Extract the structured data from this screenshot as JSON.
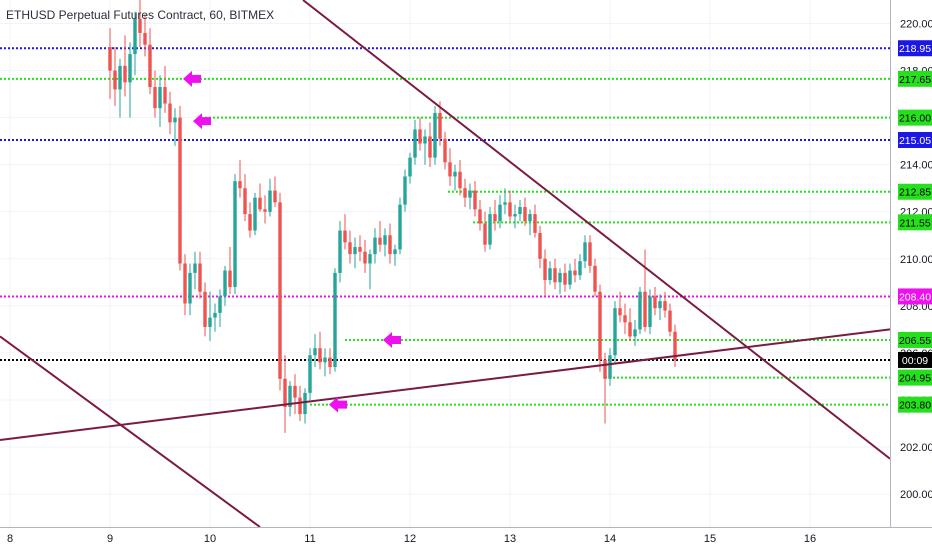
{
  "chart_data": {
    "type": "candlestick",
    "title": "ETHUSD Perpetual Futures Contract, 60, BITMEX",
    "ylim": [
      198.6,
      221.0
    ],
    "y_ticks": [
      "200.00",
      "202.00",
      "204.00",
      "206.00",
      "208.00",
      "210.00",
      "212.00",
      "214.00",
      "216.00",
      "218.00",
      "220.00"
    ],
    "x_ticks": [
      {
        "label": "8",
        "day": 8
      },
      {
        "label": "9",
        "day": 9
      },
      {
        "label": "10",
        "day": 10
      },
      {
        "label": "11",
        "day": 11
      },
      {
        "label": "12",
        "day": 12
      },
      {
        "label": "13",
        "day": 13
      },
      {
        "label": "14",
        "day": 14
      },
      {
        "label": "15",
        "day": 15
      },
      {
        "label": "16",
        "day": 16
      }
    ],
    "xlim_days": [
      7.9,
      16.8
    ],
    "colors": {
      "up": "#26a69a",
      "down": "#ef5350",
      "trend": "#7b1a42",
      "blue": "#1d17e6",
      "green": "#26e01e",
      "magenta": "#ee10ee",
      "arrow": "#ee10ee",
      "price": "#000000"
    },
    "horizontal_levels": [
      {
        "price": 218.95,
        "label": "218.95",
        "color": "blue",
        "start_day": 7.9
      },
      {
        "price": 217.65,
        "label": "217.65",
        "color": "green",
        "start_day": 7.9
      },
      {
        "price": 216.0,
        "label": "216.00",
        "color": "green",
        "start_day": 9.95
      },
      {
        "price": 215.05,
        "label": "215.05",
        "color": "blue",
        "start_day": 7.9
      },
      {
        "price": 212.85,
        "label": "212.85",
        "color": "green",
        "start_day": 12.38
      },
      {
        "price": 211.55,
        "label": "211.55",
        "color": "green",
        "start_day": 12.63
      },
      {
        "price": 208.4,
        "label": "208.40",
        "color": "magenta",
        "start_day": 7.9
      },
      {
        "price": 206.55,
        "label": "206.55",
        "color": "green",
        "start_day": 11.35
      },
      {
        "price": 204.95,
        "label": "204.95",
        "color": "green",
        "start_day": 13.95
      },
      {
        "price": 203.8,
        "label": "203.80",
        "color": "green",
        "start_day": 11.0
      }
    ],
    "current_price": {
      "price": 205.7,
      "label": "00:09",
      "color": "price"
    },
    "trendlines": [
      {
        "p1": [
          7.9,
          202.3
        ],
        "p2": [
          16.8,
          207.0
        ]
      },
      {
        "p1": [
          10.93,
          221.0
        ],
        "p2": [
          16.8,
          201.5
        ]
      },
      {
        "p1": [
          7.9,
          206.7
        ],
        "p2": [
          10.5,
          198.6
        ]
      }
    ],
    "arrows": [
      {
        "day": 9.82,
        "price": 217.65,
        "glyph": "🡸"
      },
      {
        "day": 9.92,
        "price": 215.85,
        "glyph": "🡸"
      },
      {
        "day": 11.82,
        "price": 206.55,
        "glyph": "🡸"
      },
      {
        "day": 11.28,
        "price": 203.8,
        "glyph": "🡸"
      }
    ],
    "candles": [
      [
        9.0,
        219.0,
        219.8,
        216.8,
        218.0
      ],
      [
        9.05,
        218.0,
        219.0,
        216.5,
        217.2
      ],
      [
        9.1,
        217.2,
        218.5,
        216.0,
        218.2
      ],
      [
        9.15,
        218.2,
        219.5,
        216.9,
        217.5
      ],
      [
        9.2,
        217.5,
        219.2,
        216.0,
        218.7
      ],
      [
        9.25,
        218.7,
        220.5,
        217.8,
        220.2
      ],
      [
        9.3,
        220.2,
        221.0,
        219.0,
        219.6
      ],
      [
        9.35,
        219.6,
        220.4,
        218.6,
        219.1
      ],
      [
        9.4,
        219.1,
        219.8,
        217.0,
        217.3
      ],
      [
        9.45,
        217.3,
        218.0,
        216.0,
        216.4
      ],
      [
        9.5,
        216.4,
        217.8,
        215.6,
        217.3
      ],
      [
        9.55,
        217.3,
        218.2,
        216.2,
        216.6
      ],
      [
        9.6,
        216.6,
        217.1,
        215.3,
        215.8
      ],
      [
        9.65,
        215.8,
        216.4,
        214.8,
        216.0
      ],
      [
        9.7,
        216.0,
        216.5,
        209.5,
        209.8
      ],
      [
        9.75,
        209.8,
        210.2,
        207.6,
        208.1
      ],
      [
        9.8,
        208.1,
        209.8,
        207.6,
        209.4
      ],
      [
        9.85,
        209.4,
        210.3,
        208.7,
        209.8
      ],
      [
        9.9,
        209.8,
        210.3,
        208.3,
        208.6
      ],
      [
        9.95,
        208.6,
        209.0,
        206.7,
        207.1
      ],
      [
        10.0,
        207.1,
        208.6,
        206.5,
        207.5
      ],
      [
        10.05,
        207.5,
        208.1,
        206.9,
        207.7
      ],
      [
        10.1,
        207.7,
        208.7,
        207.1,
        208.4
      ],
      [
        10.15,
        208.4,
        209.7,
        208.0,
        209.5
      ],
      [
        10.2,
        209.5,
        210.5,
        208.5,
        208.8
      ],
      [
        10.25,
        208.8,
        213.6,
        208.5,
        213.3
      ],
      [
        10.3,
        213.3,
        214.2,
        212.6,
        213.0
      ],
      [
        10.35,
        213.0,
        213.6,
        211.6,
        211.9
      ],
      [
        10.4,
        211.9,
        212.4,
        210.9,
        211.2
      ],
      [
        10.45,
        211.2,
        212.8,
        211.0,
        212.6
      ],
      [
        10.5,
        212.6,
        213.2,
        212.0,
        212.1
      ],
      [
        10.55,
        212.1,
        212.7,
        211.5,
        212.0
      ],
      [
        10.6,
        212.0,
        213.4,
        211.8,
        212.9
      ],
      [
        10.65,
        212.9,
        213.5,
        212.2,
        212.4
      ],
      [
        10.7,
        212.4,
        212.8,
        204.4,
        204.9
      ],
      [
        10.75,
        204.9,
        205.9,
        202.6,
        203.7
      ],
      [
        10.8,
        203.7,
        204.8,
        203.3,
        204.6
      ],
      [
        10.85,
        204.6,
        205.1,
        203.4,
        204.1
      ],
      [
        10.9,
        204.1,
        204.6,
        203.1,
        203.4
      ],
      [
        10.95,
        203.4,
        204.5,
        203.0,
        204.3
      ],
      [
        11.0,
        204.3,
        206.2,
        204.0,
        205.9
      ],
      [
        11.05,
        205.9,
        206.8,
        205.4,
        206.2
      ],
      [
        11.1,
        206.2,
        206.9,
        205.3,
        205.6
      ],
      [
        11.15,
        205.6,
        206.2,
        205.0,
        205.8
      ],
      [
        11.2,
        205.8,
        206.2,
        205.1,
        205.4
      ],
      [
        11.25,
        205.4,
        209.6,
        205.2,
        209.4
      ],
      [
        11.3,
        209.4,
        211.6,
        209.0,
        211.2
      ],
      [
        11.35,
        211.2,
        211.9,
        210.4,
        210.7
      ],
      [
        11.4,
        210.7,
        211.2,
        209.8,
        210.2
      ],
      [
        11.45,
        210.2,
        210.9,
        209.6,
        210.5
      ],
      [
        11.5,
        210.5,
        211.0,
        209.9,
        210.3
      ],
      [
        11.55,
        210.3,
        210.8,
        209.4,
        209.8
      ],
      [
        11.6,
        209.8,
        210.4,
        208.7,
        210.2
      ],
      [
        11.65,
        210.2,
        211.3,
        209.8,
        210.9
      ],
      [
        11.7,
        210.9,
        211.6,
        210.3,
        210.6
      ],
      [
        11.75,
        210.6,
        211.3,
        210.1,
        211.0
      ],
      [
        11.8,
        211.0,
        211.5,
        209.8,
        210.2
      ],
      [
        11.85,
        210.2,
        210.6,
        209.7,
        210.4
      ],
      [
        11.9,
        210.4,
        212.6,
        210.2,
        212.3
      ],
      [
        11.95,
        212.3,
        213.8,
        212.0,
        213.5
      ],
      [
        12.0,
        213.5,
        214.5,
        213.2,
        214.3
      ],
      [
        12.05,
        214.3,
        215.9,
        214.0,
        215.5
      ],
      [
        12.1,
        215.5,
        216.0,
        214.6,
        214.9
      ],
      [
        12.15,
        214.9,
        215.5,
        214.0,
        215.2
      ],
      [
        12.2,
        215.2,
        215.8,
        213.9,
        214.3
      ],
      [
        12.25,
        214.3,
        216.5,
        214.0,
        216.2
      ],
      [
        12.3,
        216.2,
        216.7,
        214.8,
        215.1
      ],
      [
        12.35,
        215.1,
        215.4,
        213.8,
        214.1
      ],
      [
        12.4,
        214.1,
        214.7,
        213.1,
        213.5
      ],
      [
        12.45,
        213.5,
        214.0,
        212.9,
        213.7
      ],
      [
        12.5,
        213.7,
        214.2,
        212.7,
        213.0
      ],
      [
        12.55,
        213.0,
        213.4,
        212.2,
        212.6
      ],
      [
        12.6,
        212.6,
        213.2,
        212.1,
        212.9
      ],
      [
        12.65,
        212.9,
        213.3,
        211.8,
        212.1
      ],
      [
        12.7,
        212.1,
        212.5,
        211.2,
        211.5
      ],
      [
        12.75,
        211.5,
        212.0,
        210.3,
        210.6
      ],
      [
        12.8,
        210.6,
        212.2,
        210.4,
        211.9
      ],
      [
        12.85,
        211.9,
        212.5,
        211.2,
        211.6
      ],
      [
        12.9,
        211.6,
        212.7,
        211.3,
        212.3
      ],
      [
        12.95,
        212.3,
        213.0,
        211.9,
        212.4
      ],
      [
        13.0,
        212.4,
        212.9,
        211.6,
        211.8
      ],
      [
        13.05,
        211.8,
        212.3,
        211.3,
        211.9
      ],
      [
        13.1,
        211.9,
        212.5,
        211.6,
        212.2
      ],
      [
        13.15,
        212.2,
        212.6,
        211.4,
        211.6
      ],
      [
        13.2,
        211.6,
        212.1,
        211.0,
        211.9
      ],
      [
        13.25,
        211.9,
        212.3,
        210.9,
        211.1
      ],
      [
        13.3,
        211.1,
        211.4,
        209.6,
        210.0
      ],
      [
        13.35,
        210.0,
        210.4,
        208.4,
        209.1
      ],
      [
        13.4,
        209.1,
        209.9,
        208.9,
        209.6
      ],
      [
        13.45,
        209.6,
        210.0,
        208.7,
        209.0
      ],
      [
        13.5,
        209.0,
        209.6,
        208.5,
        209.4
      ],
      [
        13.55,
        209.4,
        209.8,
        208.6,
        208.9
      ],
      [
        13.6,
        208.9,
        209.8,
        208.7,
        209.5
      ],
      [
        13.65,
        209.5,
        210.0,
        209.0,
        209.3
      ],
      [
        13.7,
        209.3,
        210.2,
        209.1,
        209.9
      ],
      [
        13.75,
        209.9,
        211.0,
        209.6,
        210.7
      ],
      [
        13.8,
        210.7,
        211.0,
        209.4,
        209.7
      ],
      [
        13.85,
        209.7,
        210.0,
        208.4,
        208.6
      ],
      [
        13.9,
        208.6,
        208.9,
        205.2,
        205.7
      ],
      [
        13.95,
        205.7,
        206.0,
        203.0,
        204.9
      ],
      [
        14.0,
        204.9,
        206.2,
        204.6,
        205.9
      ],
      [
        14.05,
        205.9,
        208.2,
        205.6,
        207.9
      ],
      [
        14.1,
        207.9,
        208.6,
        207.3,
        207.6
      ],
      [
        14.15,
        207.6,
        208.1,
        206.8,
        207.3
      ],
      [
        14.2,
        207.3,
        207.9,
        206.5,
        206.7
      ],
      [
        14.25,
        206.7,
        207.4,
        206.3,
        207.0
      ],
      [
        14.3,
        207.0,
        208.8,
        206.8,
        208.6
      ],
      [
        14.35,
        208.6,
        210.4,
        206.9,
        207.1
      ],
      [
        14.4,
        207.1,
        208.7,
        206.8,
        208.4
      ],
      [
        14.45,
        208.4,
        208.8,
        207.6,
        207.9
      ],
      [
        14.5,
        207.9,
        208.5,
        207.4,
        208.2
      ],
      [
        14.55,
        208.2,
        208.6,
        207.5,
        207.8
      ],
      [
        14.6,
        207.8,
        208.1,
        206.7,
        206.9
      ],
      [
        14.65,
        206.9,
        207.2,
        205.4,
        205.7
      ]
    ]
  }
}
